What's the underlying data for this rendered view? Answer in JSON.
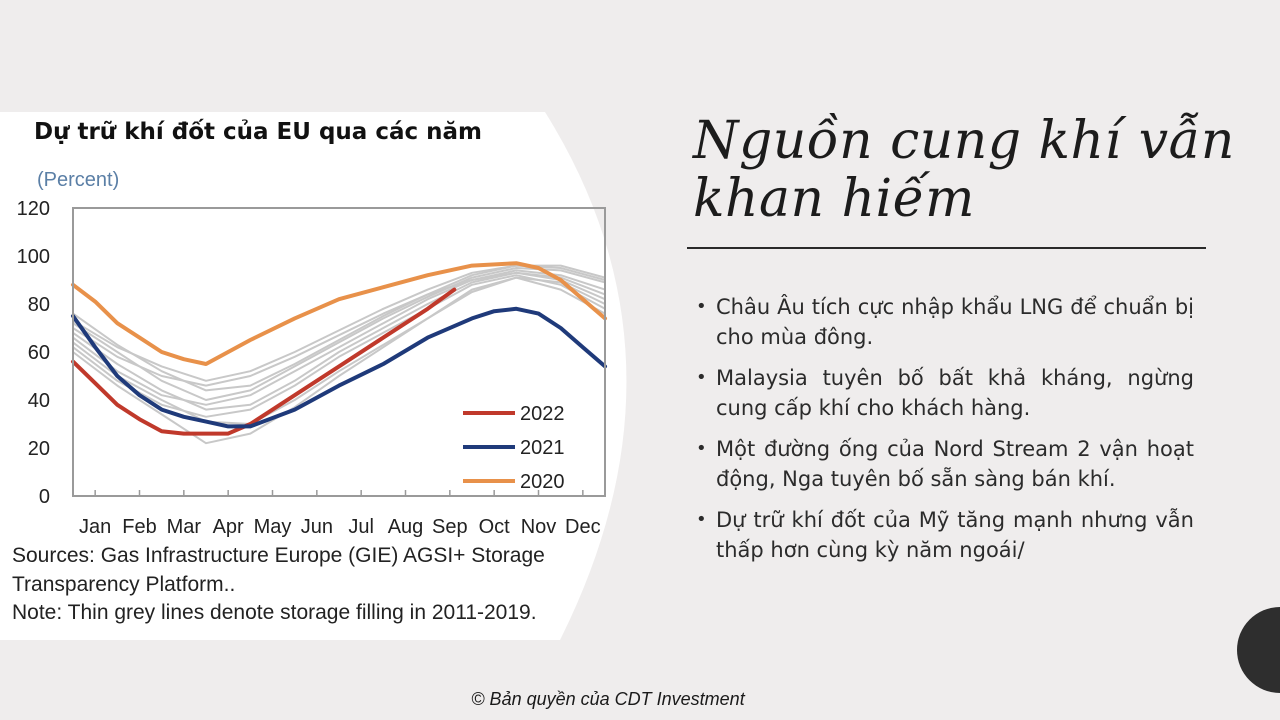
{
  "slide": {
    "heading_line1": "Nguồn cung khí vẫn",
    "heading_line2": "khan hiếm",
    "bullets": [
      "Châu Âu tích cực nhập khẩu LNG để chuẩn bị cho mùa đông.",
      "Malaysia tuyên bố bất khả kháng, ngừng cung cấp khí cho khách hàng.",
      "Một đường ống của Nord Stream 2 vận hoạt động, Nga tuyên bố sẵn sàng bán khí.",
      "Dự trữ khí đốt của Mỹ tăng mạnh nhưng vẫn thấp hơn cùng kỳ năm ngoái/"
    ],
    "footer": "© Bản quyền của CDT Investment",
    "colors": {
      "background": "#efeded",
      "panel": "#ffffff",
      "circle": "#2e2e2e"
    }
  },
  "chart_title": "Dự trữ khí đốt của EU qua các năm",
  "chart_data": {
    "type": "line",
    "ylabel": "(Percent)",
    "ylim": [
      0,
      120
    ],
    "yticks": [
      "0",
      "20",
      "40",
      "60",
      "80",
      "100",
      "120"
    ],
    "categories": [
      "Jan",
      "Feb",
      "Mar",
      "Apr",
      "May",
      "Jun",
      "Jul",
      "Aug",
      "Sep",
      "Oct",
      "Nov",
      "Dec"
    ],
    "legend_position": "bottom-right",
    "series": [
      {
        "name": "2022",
        "color": "#c0392b",
        "x": [
          0,
          0.5,
          1,
          1.5,
          2,
          2.5,
          3,
          3.5,
          4,
          5,
          6,
          7,
          8,
          8.6
        ],
        "y": [
          56,
          47,
          38,
          32,
          27,
          26,
          26,
          26,
          30,
          42,
          54,
          66,
          78,
          86
        ]
      },
      {
        "name": "2021",
        "color": "#1f3a7a",
        "x": [
          0,
          0.5,
          1,
          1.5,
          2,
          2.5,
          3,
          3.5,
          4,
          5,
          6,
          7,
          8,
          9,
          9.5,
          10,
          10.5,
          11,
          11.5,
          12
        ],
        "y": [
          75,
          62,
          50,
          42,
          36,
          33,
          31,
          29,
          29,
          36,
          46,
          55,
          66,
          74,
          77,
          78,
          76,
          70,
          62,
          54
        ]
      },
      {
        "name": "2020",
        "color": "#e8914a",
        "x": [
          0,
          0.5,
          1,
          1.5,
          2,
          2.5,
          3,
          4,
          5,
          6,
          7,
          8,
          9,
          10,
          10.5,
          11,
          11.5,
          12
        ],
        "y": [
          88,
          81,
          72,
          66,
          60,
          57,
          55,
          65,
          74,
          82,
          87,
          92,
          96,
          97,
          95,
          90,
          82,
          74
        ]
      },
      {
        "name": "",
        "color": "#c8c8c8",
        "x": [
          0,
          1,
          2,
          3,
          4,
          5,
          6,
          7,
          8,
          9,
          10,
          11,
          12
        ],
        "y": [
          70,
          58,
          50,
          46,
          50,
          58,
          67,
          76,
          84,
          90,
          93,
          90,
          82
        ]
      },
      {
        "name": "",
        "color": "#c8c8c8",
        "x": [
          0,
          1,
          2,
          3,
          4,
          5,
          6,
          7,
          8,
          9,
          10,
          11,
          12
        ],
        "y": [
          66,
          52,
          42,
          38,
          42,
          52,
          62,
          72,
          82,
          90,
          94,
          92,
          86
        ]
      },
      {
        "name": "",
        "color": "#c8c8c8",
        "x": [
          0,
          1,
          2,
          3,
          4,
          5,
          6,
          7,
          8,
          9,
          10,
          11,
          12
        ],
        "y": [
          72,
          60,
          48,
          40,
          44,
          54,
          64,
          74,
          83,
          91,
          95,
          94,
          89
        ]
      },
      {
        "name": "",
        "color": "#c8c8c8",
        "x": [
          0,
          1,
          2,
          3,
          4,
          5,
          6,
          7,
          8,
          9,
          10,
          11,
          12
        ],
        "y": [
          62,
          48,
          38,
          33,
          36,
          46,
          58,
          68,
          78,
          88,
          92,
          88,
          78
        ]
      },
      {
        "name": "",
        "color": "#c8c8c8",
        "x": [
          0,
          1,
          2,
          3,
          4,
          5,
          6,
          7,
          8,
          9,
          10,
          11,
          12
        ],
        "y": [
          76,
          63,
          52,
          44,
          46,
          55,
          65,
          75,
          84,
          92,
          96,
          96,
          91
        ]
      },
      {
        "name": "",
        "color": "#c8c8c8",
        "x": [
          0,
          1,
          2,
          3,
          4,
          5,
          6,
          7,
          8,
          9,
          10,
          11,
          12
        ],
        "y": [
          68,
          55,
          44,
          36,
          38,
          48,
          60,
          70,
          80,
          89,
          93,
          91,
          84
        ]
      },
      {
        "name": "",
        "color": "#c8c8c8",
        "x": [
          0,
          1,
          2,
          3,
          4,
          5,
          6,
          7,
          8,
          9,
          10,
          11,
          12
        ],
        "y": [
          64,
          50,
          40,
          31,
          30,
          40,
          52,
          63,
          74,
          85,
          91,
          89,
          80
        ]
      },
      {
        "name": "",
        "color": "#c8c8c8",
        "x": [
          0,
          1,
          2,
          3,
          4,
          5,
          6,
          7,
          8,
          9,
          10,
          11,
          12
        ],
        "y": [
          60,
          46,
          34,
          22,
          26,
          37,
          50,
          62,
          74,
          86,
          91,
          86,
          76
        ]
      },
      {
        "name": "",
        "color": "#c8c8c8",
        "x": [
          0,
          1,
          2,
          3,
          4,
          5,
          6,
          7,
          8,
          9,
          10,
          11,
          12
        ],
        "y": [
          73,
          62,
          54,
          48,
          52,
          60,
          69,
          78,
          86,
          93,
          96,
          95,
          90
        ]
      }
    ]
  },
  "sources": {
    "line1": "Sources: Gas Infrastructure Europe (GIE) AGSI+ Storage",
    "line2": "Transparency Platform..",
    "line3": "Note: Thin grey lines denote storage filling in 2011-2019."
  }
}
